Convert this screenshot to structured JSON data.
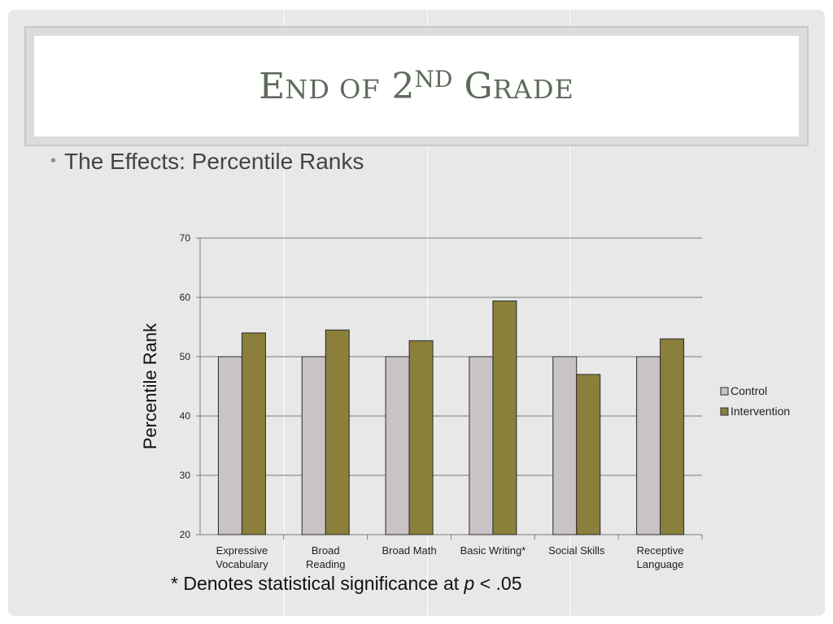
{
  "slide": {
    "title": {
      "letter1": "E",
      "rest1": "ND OF",
      "num": "2",
      "sup": "ND",
      "letter2": "G",
      "rest2": "RADE"
    },
    "bullet": "The Effects: Percentile Ranks",
    "footnote": {
      "prefix": "* Denotes statistical significance at",
      "p": "p",
      "suffix": "< .05"
    }
  },
  "colors": {
    "control": "#c9c3c6",
    "intervention": "#8b803b",
    "title": "#5d6b5a",
    "background": "#e8e8e8"
  },
  "chart_data": {
    "type": "bar",
    "categories": [
      [
        "Expressive",
        "Vocabulary"
      ],
      [
        "Broad",
        "Reading"
      ],
      [
        "Broad Math"
      ],
      [
        "Basic Writing*"
      ],
      [
        "Social Skills"
      ],
      [
        "Receptive",
        "Language"
      ]
    ],
    "series": [
      {
        "name": "Control",
        "values": [
          50,
          50,
          50,
          50,
          50,
          50
        ]
      },
      {
        "name": "Intervention",
        "values": [
          54,
          54.5,
          52.7,
          59.4,
          47,
          53
        ]
      }
    ],
    "ylabel": "Percentile Rank",
    "ylim": [
      20,
      70
    ],
    "yticks": [
      20,
      30,
      40,
      50,
      60,
      70
    ],
    "grid": true,
    "legend": "right"
  }
}
